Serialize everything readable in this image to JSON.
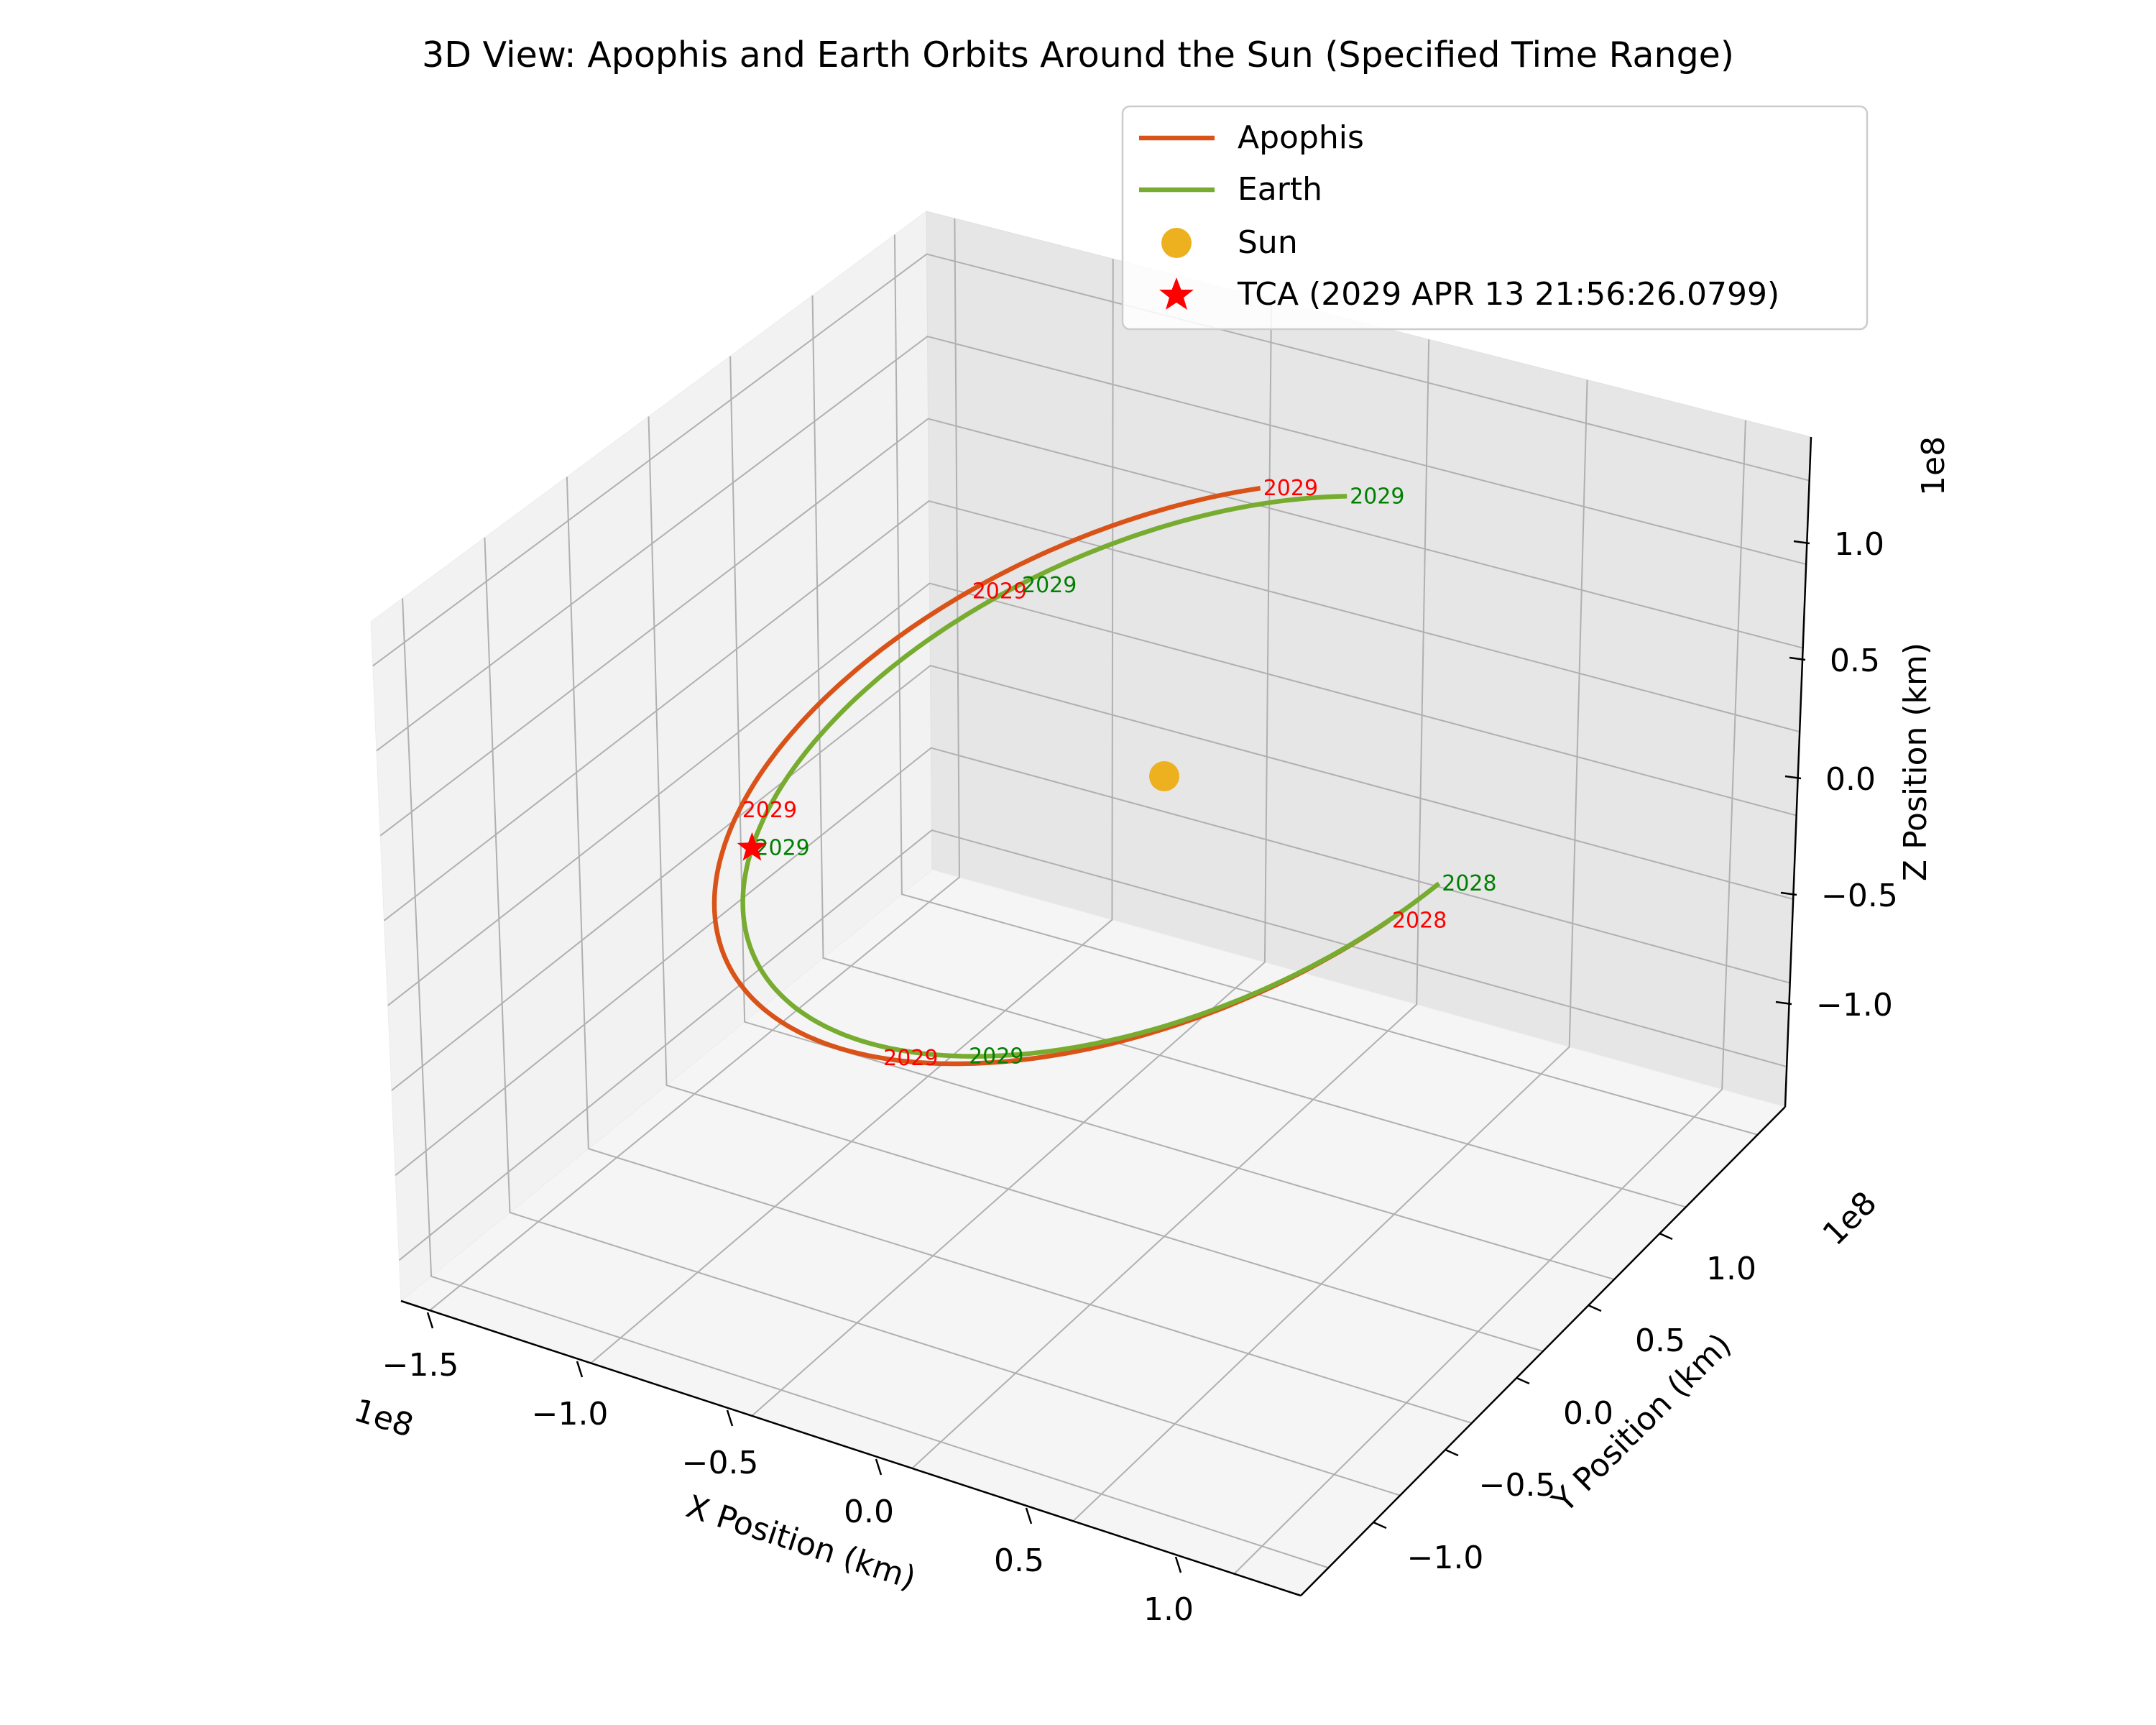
{
  "chart_data": {
    "type": "line",
    "projection": "3d",
    "title": "3D View: Apophis and Earth Orbits Around the Sun (Specified Time Range)",
    "xlabel": "X Position (km)",
    "ylabel": "Y Position (km)",
    "zlabel": "Z Position (km)",
    "x_offset_label": "1e8",
    "y_offset_label": "1e8",
    "z_offset_label": "1e8",
    "x_ticks": [
      "−1.5",
      "−1.0",
      "−0.5",
      "0.0",
      "0.5",
      "1.0"
    ],
    "y_ticks": [
      "−1.0",
      "−0.5",
      "0.0",
      "0.5",
      "1.0"
    ],
    "z_ticks": [
      "−1.0",
      "−0.5",
      "0.0",
      "0.5",
      "1.0"
    ],
    "grid": true,
    "legend_position": "top-right",
    "series": [
      {
        "name": "Apophis",
        "color": "#d95319",
        "orbit": {
          "center_x": -0.04,
          "center_y": 0.0,
          "radius": 1.04,
          "angle_start": 0.19,
          "angle_end": 4.15
        },
        "date_labels": [
          "2028",
          "2029",
          "2029",
          "2029",
          "2029"
        ],
        "label_angles": [
          0.19,
          1.43,
          2.67,
          3.47,
          4.15
        ]
      },
      {
        "name": "Earth",
        "color": "#77ac30",
        "orbit": {
          "center_x": 0.0,
          "center_y": 0.0,
          "radius": 1.0,
          "angle_start": 0.05,
          "angle_end": 4.35
        },
        "date_labels": [
          "2028",
          "2029",
          "2029",
          "2029",
          "2029"
        ],
        "label_angles": [
          0.05,
          1.25,
          2.54,
          3.55,
          4.35
        ]
      }
    ],
    "sun": {
      "name": "Sun",
      "x": 0.0,
      "y": 0.0,
      "z": 0.0,
      "color": "#edb120"
    },
    "tca": {
      "name": "TCA (2029 APR 13 21:56:26.0799)",
      "color": "#ff0000",
      "angle": 2.54
    }
  }
}
